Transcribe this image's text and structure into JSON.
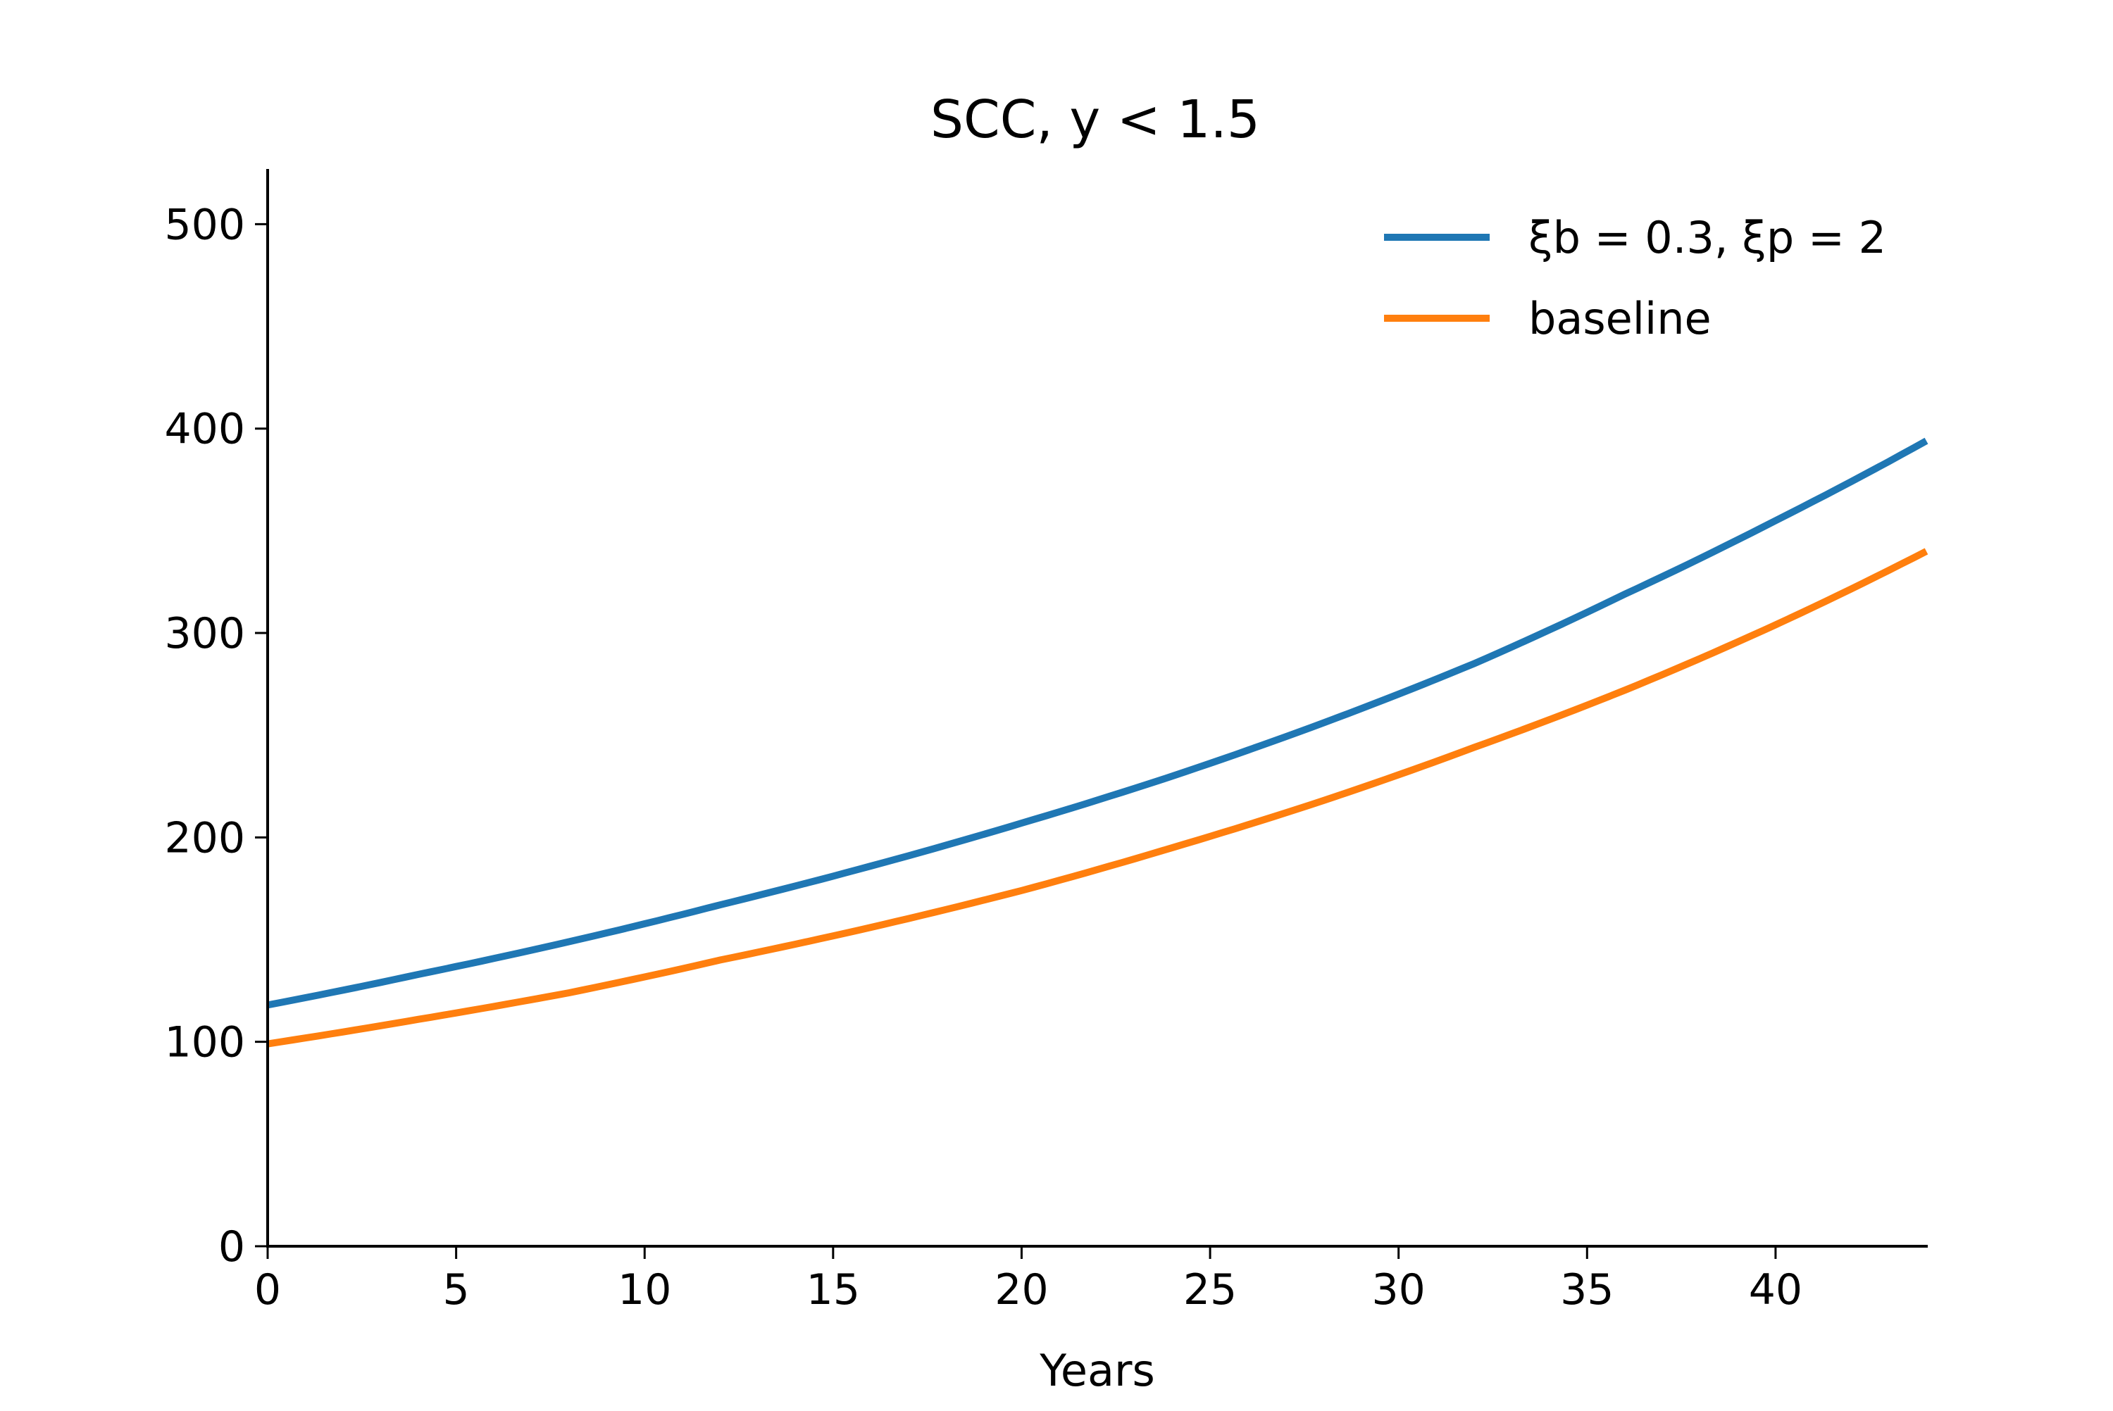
{
  "chart_data": {
    "type": "line",
    "title": "SCC, y < 1.5",
    "xlabel": "Years",
    "ylabel": "",
    "xlim": [
      0,
      44
    ],
    "ylim": [
      0,
      527
    ],
    "x_ticks": [
      0,
      5,
      10,
      15,
      20,
      25,
      30,
      35,
      40
    ],
    "y_ticks": [
      0,
      100,
      200,
      300,
      400,
      500
    ],
    "grid": false,
    "legend_position": "top-right",
    "x": [
      0,
      4,
      8,
      12,
      16,
      20,
      24,
      28,
      32,
      36,
      40,
      44
    ],
    "series": [
      {
        "name": "ξb = 0.3, ξp = 2",
        "color": "#1f77b4",
        "values": [
          118,
          133,
          149,
          167,
          186,
          207,
          230,
          256,
          285,
          319,
          355,
          394
        ]
      },
      {
        "name": "baseline",
        "color": "#ff7f0e",
        "values": [
          99,
          111,
          124,
          140,
          156,
          174,
          195,
          218,
          244,
          272,
          304,
          340
        ]
      }
    ]
  }
}
